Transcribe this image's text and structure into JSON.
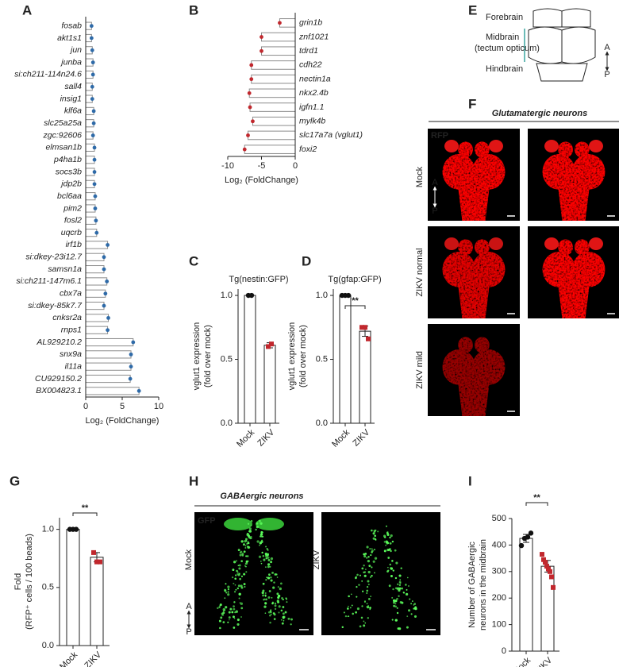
{
  "chart_data": [
    {
      "panel": "A",
      "type": "bar",
      "orientation": "horizontal",
      "categories": [
        "fosab",
        "akt1s1",
        "jun",
        "junba",
        "si:ch211-114n24.6",
        "sall4",
        "insig1",
        "klf6a",
        "slc25a25a",
        "zgc:92606",
        "elmsan1b",
        "p4ha1b",
        "socs3b",
        "jdp2b",
        "bcl6aa",
        "pim2",
        "fosl2",
        "uqcrb",
        "irf1b",
        "si:dkey-23i12.7",
        "samsn1a",
        "si:ch211-147m6.1",
        "cbx7a",
        "si:dkey-85k7.7",
        "cnksr2a",
        "rnps1",
        "AL929210.2",
        "snx9a",
        "il11a",
        "CU929150.2",
        "BX004823.1"
      ],
      "values": [
        0.8,
        0.8,
        0.9,
        1.0,
        1.0,
        0.9,
        0.9,
        1.1,
        1.1,
        1.0,
        1.2,
        1.2,
        1.2,
        1.2,
        1.3,
        1.3,
        1.4,
        1.5,
        3.0,
        2.5,
        2.5,
        2.9,
        2.7,
        2.5,
        3.1,
        3.0,
        6.5,
        6.2,
        6.2,
        6.1,
        7.3
      ],
      "xlim": [
        0,
        10
      ],
      "xticks": [
        0,
        5,
        10
      ],
      "xlabel": "Log₂ (FoldChange)",
      "bar_color": "#ffffff",
      "edge_color": "#8c8c8c",
      "point_color": "#2e6aa8"
    },
    {
      "panel": "B",
      "type": "bar",
      "orientation": "horizontal",
      "categories": [
        "grin1b",
        "znf1021",
        "tdrd1",
        "cdh22",
        "nectin1a",
        "nkx2.4b",
        "igfn1.1",
        "mylk4b",
        "slc17a7a (vglut1)",
        "foxi2"
      ],
      "values": [
        -2.3,
        -5.0,
        -5.0,
        -6.5,
        -6.5,
        -6.8,
        -6.7,
        -6.3,
        -7.0,
        -7.5
      ],
      "xlim": [
        -10,
        0
      ],
      "xticks": [
        -10,
        -5,
        0
      ],
      "xlabel": "Log₂ (FoldChange)",
      "bar_color": "#ffffff",
      "edge_color": "#8c8c8c",
      "point_color": "#c1272d"
    },
    {
      "panel": "C",
      "type": "bar",
      "title": "Tg(nestin:GFP)",
      "ylabel": [
        "vglut1 expression",
        "(fold over mock)"
      ],
      "categories": [
        "Mock",
        "ZIKV"
      ],
      "values": [
        1.0,
        0.61
      ],
      "errors": [
        0,
        0.02
      ],
      "points": [
        [
          1.0,
          1.0
        ],
        [
          0.6,
          0.62
        ]
      ],
      "markers": [
        "circle",
        "square"
      ],
      "marker_colors": [
        "#111111",
        "#c1272d"
      ],
      "ylim": [
        0,
        1.05
      ],
      "yticks": [
        {
          "value": 0,
          "label": "0.0"
        },
        0.5,
        {
          "value": 1,
          "label": "1.0"
        }
      ]
    },
    {
      "panel": "D",
      "type": "bar",
      "title": "Tg(gfap:GFP)",
      "ylabel": [
        "vglut1 expression",
        "(fold over mock)"
      ],
      "categories": [
        "Mock",
        "ZIKV"
      ],
      "values": [
        1.0,
        0.72
      ],
      "errors": [
        0,
        0.04
      ],
      "points": [
        [
          1.0,
          1.0,
          1.0
        ],
        [
          0.75,
          0.75,
          0.66
        ]
      ],
      "markers": [
        "circle",
        "square"
      ],
      "marker_colors": [
        "#111111",
        "#c1272d"
      ],
      "ylim": [
        0,
        1.05
      ],
      "yticks": [
        {
          "value": 0,
          "label": "0.0"
        },
        0.5,
        {
          "value": 1,
          "label": "1.0"
        }
      ],
      "significance": "**"
    },
    {
      "panel": "G",
      "type": "bar",
      "ylabel": [
        "Fold",
        "(RFP⁺ cells / 100 beads)"
      ],
      "categories": [
        "Mock",
        "ZIKV"
      ],
      "values": [
        1.0,
        0.76
      ],
      "errors": [
        0,
        0.04
      ],
      "points": [
        [
          1.0,
          1.0,
          1.0
        ],
        [
          0.8,
          0.72,
          0.72
        ]
      ],
      "markers": [
        "circle",
        "square"
      ],
      "marker_colors": [
        "#111111",
        "#c1272d"
      ],
      "ylim": [
        0,
        1.1
      ],
      "yticks": [
        {
          "value": 0,
          "label": "0.0"
        },
        0.5,
        {
          "value": 1,
          "label": "1.0"
        }
      ],
      "significance": "**"
    },
    {
      "panel": "I",
      "type": "bar",
      "ylabel": [
        "Number of GABAergic",
        "neurons in the midbrain"
      ],
      "categories": [
        "Mock",
        "ZIKV"
      ],
      "values": [
        425,
        320
      ],
      "errors": [
        15,
        22
      ],
      "points": [
        [
          398,
          425,
          430,
          445
        ],
        [
          365,
          345,
          335,
          320,
          310,
          300,
          280,
          240
        ]
      ],
      "markers": [
        "circle",
        "square"
      ],
      "marker_colors": [
        "#111111",
        "#c1272d"
      ],
      "ylim": [
        0,
        500
      ],
      "yticks": [
        0,
        100,
        200,
        300,
        400,
        500
      ],
      "significance": "**"
    }
  ],
  "diagram_e": {
    "panel": "E",
    "regions": [
      "Forebrain",
      "Midbrain",
      "(tectum opticum)",
      "Hindbrain"
    ],
    "anterior": "A",
    "posterior": "P"
  },
  "images_f": {
    "panel": "F",
    "title": "Glutamatergic neurons",
    "channel": "RFP",
    "rows": [
      "Mock",
      "ZIKV normal",
      "ZIKV mild"
    ],
    "anterior": "A",
    "posterior": "P"
  },
  "images_h": {
    "panel": "H",
    "title": "GABAergic neurons",
    "channel": "GFP",
    "columns": [
      "Mock",
      "ZIKV"
    ],
    "anterior": "A",
    "posterior": "P"
  }
}
